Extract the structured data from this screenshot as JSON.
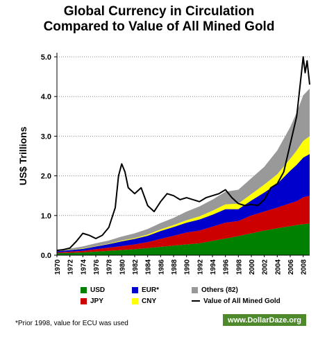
{
  "chart_data": {
    "type": "area",
    "title_line1": "Global Currency in Circulation",
    "title_line2": "Compared to Value of All Mined Gold",
    "ylabel": "US$ Trillions",
    "xlabel": "",
    "ylim": [
      0,
      5.0
    ],
    "xlim": [
      1970,
      2009
    ],
    "y_ticks": [
      "0.0",
      "1.0",
      "2.0",
      "3.0",
      "4.0",
      "5.0"
    ],
    "x_ticks": [
      "1970",
      "1972",
      "1974",
      "1976",
      "1978",
      "1980",
      "1982",
      "1984",
      "1986",
      "1988",
      "1990",
      "1992",
      "1994",
      "1996",
      "1998",
      "2000",
      "2002",
      "2004",
      "2006",
      "2008"
    ],
    "grid": "horizontal dotted",
    "x": [
      1970,
      1972,
      1974,
      1976,
      1978,
      1980,
      1982,
      1984,
      1986,
      1988,
      1990,
      1992,
      1994,
      1996,
      1998,
      2000,
      2002,
      2004,
      2006,
      2007,
      2008,
      2009
    ],
    "series": [
      {
        "name": "USD",
        "color": "#008000",
        "values": [
          0.05,
          0.06,
          0.07,
          0.09,
          0.11,
          0.13,
          0.15,
          0.18,
          0.21,
          0.24,
          0.27,
          0.3,
          0.36,
          0.42,
          0.48,
          0.55,
          0.62,
          0.68,
          0.73,
          0.76,
          0.78,
          0.8
        ]
      },
      {
        "name": "JPY",
        "color": "#cc0000",
        "values": [
          0.02,
          0.03,
          0.04,
          0.06,
          0.08,
          0.1,
          0.12,
          0.15,
          0.2,
          0.25,
          0.3,
          0.32,
          0.36,
          0.4,
          0.38,
          0.45,
          0.48,
          0.52,
          0.58,
          0.6,
          0.68,
          0.7
        ]
      },
      {
        "name": "EUR*",
        "color": "#0000cc",
        "values": [
          0.03,
          0.04,
          0.05,
          0.07,
          0.09,
          0.12,
          0.14,
          0.16,
          0.2,
          0.22,
          0.25,
          0.28,
          0.3,
          0.34,
          0.3,
          0.38,
          0.48,
          0.6,
          0.82,
          0.92,
          1.0,
          1.05
        ]
      },
      {
        "name": "CNY",
        "color": "#ffff00",
        "values": [
          0.005,
          0.005,
          0.01,
          0.01,
          0.01,
          0.02,
          0.02,
          0.03,
          0.04,
          0.05,
          0.06,
          0.08,
          0.1,
          0.12,
          0.14,
          0.16,
          0.2,
          0.24,
          0.3,
          0.36,
          0.42,
          0.45
        ]
      },
      {
        "name": "Others (82)",
        "color": "#999999",
        "values": [
          0.02,
          0.03,
          0.05,
          0.07,
          0.08,
          0.1,
          0.12,
          0.14,
          0.16,
          0.18,
          0.22,
          0.25,
          0.28,
          0.32,
          0.35,
          0.4,
          0.45,
          0.6,
          0.8,
          0.96,
          1.15,
          1.2
        ]
      }
    ],
    "gold_series": {
      "name": "Value of All Mined Gold",
      "color": "#000000",
      "x": [
        1970,
        1971,
        1972,
        1973,
        1974,
        1975,
        1976,
        1977,
        1978,
        1979,
        1979.5,
        1980,
        1980.5,
        1981,
        1982,
        1983,
        1984,
        1985,
        1986,
        1987,
        1988,
        1989,
        1990,
        1991,
        1992,
        1993,
        1994,
        1995,
        1996,
        1997,
        1998,
        1999,
        2000,
        2001,
        2002,
        2003,
        2004,
        2005,
        2006,
        2007,
        2008,
        2008.3,
        2008.6,
        2009
      ],
      "values": [
        0.12,
        0.14,
        0.18,
        0.35,
        0.55,
        0.5,
        0.42,
        0.5,
        0.7,
        1.2,
        2.0,
        2.3,
        2.1,
        1.7,
        1.55,
        1.7,
        1.25,
        1.1,
        1.35,
        1.55,
        1.5,
        1.4,
        1.45,
        1.4,
        1.35,
        1.45,
        1.5,
        1.55,
        1.65,
        1.45,
        1.3,
        1.25,
        1.28,
        1.25,
        1.4,
        1.7,
        1.8,
        2.1,
        2.8,
        3.5,
        5.0,
        4.6,
        4.9,
        4.3
      ]
    },
    "legend_position": "bottom",
    "legend": [
      {
        "label": "USD",
        "color": "#008000"
      },
      {
        "label": "EUR*",
        "color": "#0000cc"
      },
      {
        "label": "Others (82)",
        "color": "#999999"
      },
      {
        "label": "JPY",
        "color": "#cc0000"
      },
      {
        "label": "CNY",
        "color": "#ffff00"
      },
      {
        "label": "Value of All Mined Gold",
        "color": "#000000"
      }
    ]
  },
  "footnote": "*Prior 1998, value for ECU was used",
  "brand": "www.DollarDaze.org"
}
